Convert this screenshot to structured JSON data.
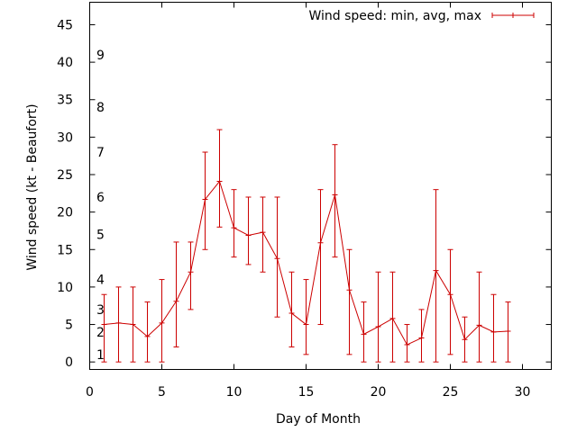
{
  "chart_data": {
    "type": "line",
    "title": "",
    "xlabel": "Day of Month",
    "ylabel": "Wind speed (kt - Beaufort)",
    "xlim": [
      0,
      32
    ],
    "ylim": [
      -1,
      48
    ],
    "x_ticks": [
      0,
      5,
      10,
      15,
      20,
      25,
      30
    ],
    "y_ticks": [
      0,
      5,
      10,
      15,
      20,
      25,
      30,
      35,
      40,
      45
    ],
    "beaufort_labels": [
      {
        "label": "1",
        "y": 1
      },
      {
        "label": "2",
        "y": 4
      },
      {
        "label": "3",
        "y": 7
      },
      {
        "label": "4",
        "y": 11
      },
      {
        "label": "5",
        "y": 17
      },
      {
        "label": "6",
        "y": 22
      },
      {
        "label": "7",
        "y": 28
      },
      {
        "label": "8",
        "y": 34
      },
      {
        "label": "9",
        "y": 41
      }
    ],
    "grid": false,
    "legend_position": "top-right",
    "series": [
      {
        "name": "Wind speed: min, avg, max",
        "color": "#cc0000",
        "points": [
          {
            "x": 1,
            "avg": 5.0,
            "min": 0,
            "max": 9
          },
          {
            "x": 2,
            "avg": 5.2,
            "min": 0,
            "max": 10
          },
          {
            "x": 3,
            "avg": 5.0,
            "min": 0,
            "max": 10
          },
          {
            "x": 4,
            "avg": 3.4,
            "min": 0,
            "max": 8
          },
          {
            "x": 5,
            "avg": 5.2,
            "min": 0,
            "max": 11
          },
          {
            "x": 6,
            "avg": 8.1,
            "min": 2,
            "max": 16
          },
          {
            "x": 7,
            "avg": 12.0,
            "min": 7,
            "max": 16
          },
          {
            "x": 8,
            "avg": 21.7,
            "min": 15,
            "max": 28
          },
          {
            "x": 9,
            "avg": 24.1,
            "min": 18,
            "max": 31
          },
          {
            "x": 10,
            "avg": 17.9,
            "min": 14,
            "max": 23
          },
          {
            "x": 11,
            "avg": 16.9,
            "min": 13,
            "max": 22
          },
          {
            "x": 12,
            "avg": 17.3,
            "min": 12,
            "max": 22
          },
          {
            "x": 13,
            "avg": 13.8,
            "min": 6,
            "max": 22
          },
          {
            "x": 14,
            "avg": 6.5,
            "min": 2,
            "max": 12
          },
          {
            "x": 15,
            "avg": 5.0,
            "min": 1,
            "max": 11
          },
          {
            "x": 16,
            "avg": 15.9,
            "min": 5,
            "max": 23
          },
          {
            "x": 17,
            "avg": 22.3,
            "min": 14,
            "max": 29
          },
          {
            "x": 18,
            "avg": 9.6,
            "min": 1,
            "max": 15
          },
          {
            "x": 19,
            "avg": 3.7,
            "min": 0,
            "max": 8
          },
          {
            "x": 20,
            "avg": 4.7,
            "min": 0,
            "max": 12
          },
          {
            "x": 21,
            "avg": 5.8,
            "min": 0,
            "max": 12
          },
          {
            "x": 22,
            "avg": 2.3,
            "min": 0,
            "max": 5
          },
          {
            "x": 23,
            "avg": 3.2,
            "min": 0,
            "max": 7
          },
          {
            "x": 24,
            "avg": 12.2,
            "min": 0,
            "max": 23
          },
          {
            "x": 25,
            "avg": 9.0,
            "min": 1,
            "max": 15
          },
          {
            "x": 26,
            "avg": 3.0,
            "min": 0,
            "max": 6
          },
          {
            "x": 27,
            "avg": 4.9,
            "min": 0,
            "max": 12
          },
          {
            "x": 28,
            "avg": 4.0,
            "min": 0,
            "max": 9
          },
          {
            "x": 29,
            "avg": 4.1,
            "min": 0,
            "max": 8
          }
        ]
      }
    ]
  }
}
